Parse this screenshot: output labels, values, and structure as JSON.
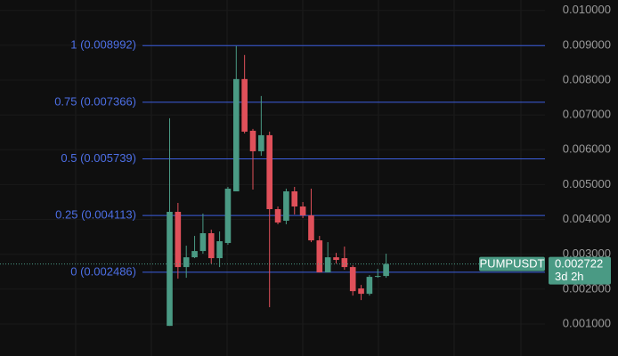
{
  "chart_data": {
    "type": "candlestick",
    "symbol": "PUMPUSDT",
    "countdown": "3d 2h",
    "last_price": {
      "value": 0.002722,
      "label": "0.002722"
    },
    "up_color": "#4a9a84",
    "down_color": "#e0505a",
    "fib_color": "#3c5fe0",
    "open": [
      0.000945,
      0.004219,
      0.002633,
      0.002914,
      0.003093,
      0.003605,
      0.002889,
      0.003324,
      0.004807,
      0.00803,
      0.006547,
      0.005958,
      0.006419,
      0.004296,
      0.003963,
      0.004807,
      0.004372,
      0.004117,
      0.0034,
      0.00248,
      0.002914,
      0.002889,
      0.002633,
      0.002019,
      0.001866,
      0.002352,
      0.002377
    ],
    "high": [
      0.006905,
      0.004475,
      0.003247,
      0.003528,
      0.004168,
      0.003707,
      0.003656,
      0.004935,
      0.008977,
      0.008721,
      0.006598,
      0.007544,
      0.006521,
      0.004372,
      0.004884,
      0.004935,
      0.0045,
      0.004884,
      0.003528,
      0.003349,
      0.003042,
      0.003221,
      0.002684,
      0.002121,
      0.002403,
      0.002582,
      0.003017
    ],
    "low": [
      0.000945,
      0.0023,
      0.002326,
      0.002889,
      0.003017,
      0.002735,
      0.002633,
      0.003272,
      0.004807,
      0.00647,
      0.004858,
      0.00583,
      0.001482,
      0.003861,
      0.003861,
      0.004142,
      0.00404,
      0.003349,
      0.00248,
      0.00248,
      0.002735,
      0.002556,
      0.001814,
      0.001686,
      0.001814,
      0.002326,
      0.002326
    ],
    "close": [
      0.004219,
      0.002633,
      0.002914,
      0.003093,
      0.003605,
      0.002889,
      0.003375,
      0.004884,
      0.00803,
      0.006521,
      0.005958,
      0.006419,
      0.004296,
      0.003912,
      0.004807,
      0.004372,
      0.004117,
      0.0034,
      0.00248,
      0.002914,
      0.002838,
      0.002633,
      0.001942,
      0.001866,
      0.002352,
      0.002377,
      0.002722
    ],
    "fib_levels": [
      {
        "value": 0.008992,
        "label": "1 (0.008992)"
      },
      {
        "value": 0.007366,
        "label": "0.75 (0.007366)"
      },
      {
        "value": 0.005739,
        "label": "0.5 (0.005739)"
      },
      {
        "value": 0.004113,
        "label": "0.25 (0.004113)"
      },
      {
        "value": 0.002486,
        "label": "0 (0.002486)"
      }
    ],
    "ylim": [
      8e-05,
      0.0103
    ],
    "yticks": [
      {
        "value": 0.001,
        "label": "0.001000"
      },
      {
        "value": 0.002,
        "label": "0.002000"
      },
      {
        "value": 0.003,
        "label": "0.003000"
      },
      {
        "value": 0.004,
        "label": "0.004000"
      },
      {
        "value": 0.005,
        "label": "0.005000"
      },
      {
        "value": 0.006,
        "label": "0.006000"
      },
      {
        "value": 0.007,
        "label": "0.007000"
      },
      {
        "value": 0.008,
        "label": "0.008000"
      },
      {
        "value": 0.009,
        "label": "0.009000"
      },
      {
        "value": 0.01,
        "label": "0.010000"
      }
    ],
    "grid": true
  }
}
